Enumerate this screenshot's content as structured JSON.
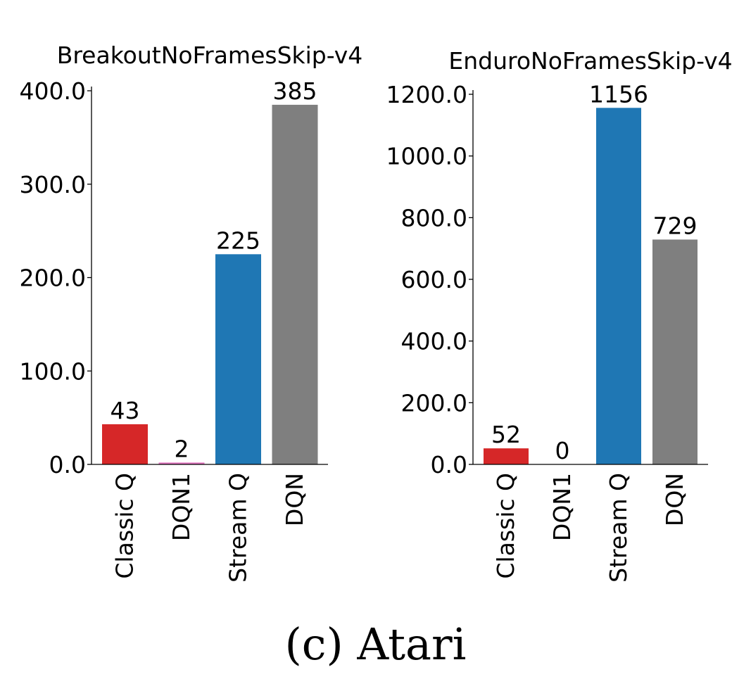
{
  "caption": "(c) Atari",
  "chart_data": [
    {
      "type": "bar",
      "title": "BreakoutNoFramesSkip-v4",
      "categories": [
        "Classic Q",
        "DQN1",
        "Stream Q",
        "DQN"
      ],
      "values": [
        43,
        2,
        225,
        385
      ],
      "data_labels": [
        "43",
        "2",
        "225",
        "385"
      ],
      "colors": [
        "#d62728",
        "#e377c2",
        "#1f77b4",
        "#7f7f7f"
      ],
      "ylim": [
        0,
        400
      ],
      "yticks": [
        0,
        100,
        200,
        300,
        400
      ],
      "ytick_labels": [
        "0.0",
        "100.0",
        "200.0",
        "300.0",
        "400.0"
      ],
      "xlabel": "",
      "ylabel": "",
      "grid": false
    },
    {
      "type": "bar",
      "title": "EnduroNoFramesSkip-v4",
      "categories": [
        "Classic Q",
        "DQN1",
        "Stream Q",
        "DQN"
      ],
      "values": [
        52,
        0,
        1156,
        729
      ],
      "data_labels": [
        "52",
        "0",
        "1156",
        "729"
      ],
      "colors": [
        "#d62728",
        "#e377c2",
        "#1f77b4",
        "#7f7f7f"
      ],
      "ylim": [
        0,
        1200
      ],
      "yticks": [
        0,
        200,
        400,
        600,
        800,
        1000,
        1200
      ],
      "ytick_labels": [
        "0.0",
        "200.0",
        "400.0",
        "600.0",
        "800.0",
        "1000.0",
        "1200.0"
      ],
      "xlabel": "",
      "ylabel": "",
      "grid": false
    }
  ]
}
